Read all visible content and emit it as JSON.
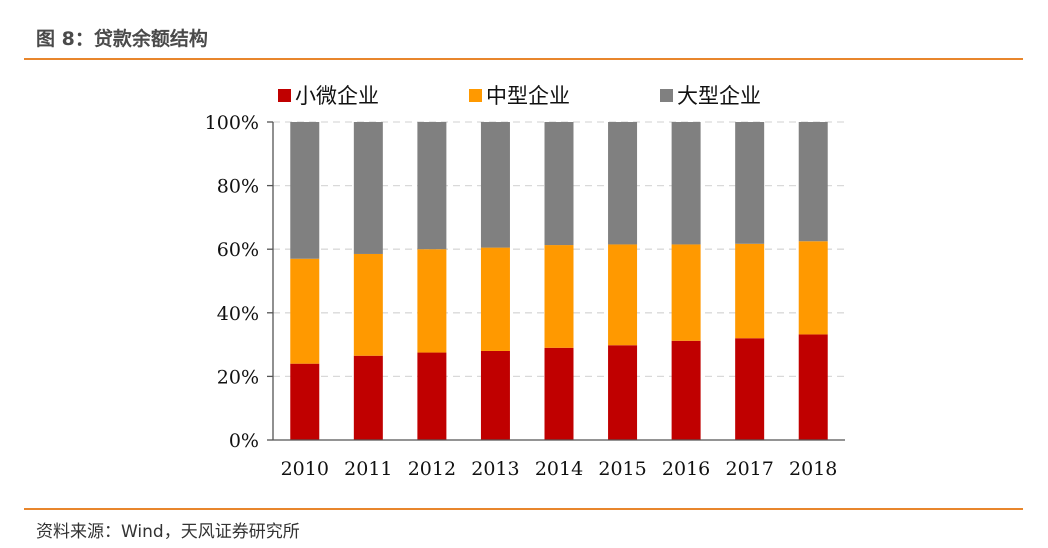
{
  "header": {
    "title": "图 8：贷款余额结构"
  },
  "footer": {
    "source": "资料来源：Wind，天风证券研究所"
  },
  "chart_data": {
    "type": "bar",
    "stacked": true,
    "categories": [
      "2010",
      "2011",
      "2012",
      "2013",
      "2014",
      "2015",
      "2016",
      "2017",
      "2018"
    ],
    "series": [
      {
        "name": "小微企业",
        "color": "#c00000",
        "values": [
          24,
          26.5,
          27.5,
          28,
          29,
          29.8,
          31.2,
          32,
          33.2
        ]
      },
      {
        "name": "中型企业",
        "color": "#ff9900",
        "values": [
          33,
          32,
          32.5,
          32.5,
          32.3,
          31.7,
          30.3,
          29.7,
          29.3
        ]
      },
      {
        "name": "大型企业",
        "color": "#808080",
        "values": [
          43,
          41.5,
          40,
          39.5,
          38.7,
          38.5,
          38.5,
          38.3,
          37.5
        ]
      }
    ],
    "y_ticks": [
      "0%",
      "20%",
      "40%",
      "60%",
      "80%",
      "100%"
    ],
    "ylim": [
      0,
      100
    ],
    "grid": true,
    "legend_position": "top"
  }
}
